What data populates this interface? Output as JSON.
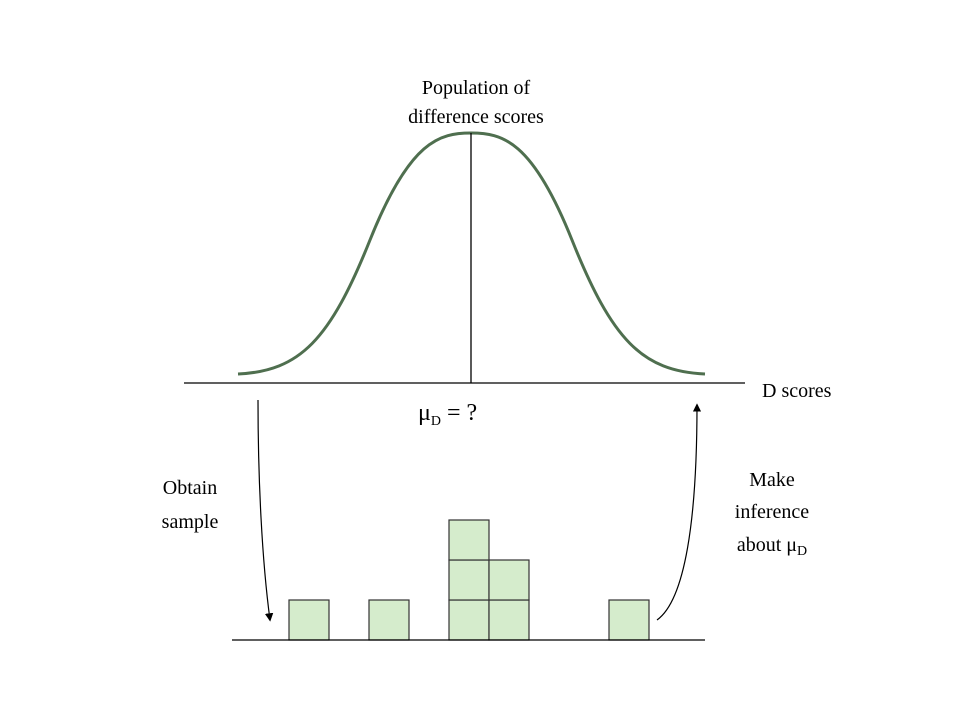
{
  "population_label": [
    "Population of",
    "difference scores"
  ],
  "axis_label": "D scores",
  "mean_label": {
    "symbol": "μ",
    "subscript": "D",
    "text": "= ?"
  },
  "left_arrow_label": [
    "Obtain",
    "sample"
  ],
  "right_arrow_label": {
    "lines": [
      "Make",
      "inference"
    ],
    "last_line": {
      "text": "about μ",
      "subscript": "D"
    }
  }
}
